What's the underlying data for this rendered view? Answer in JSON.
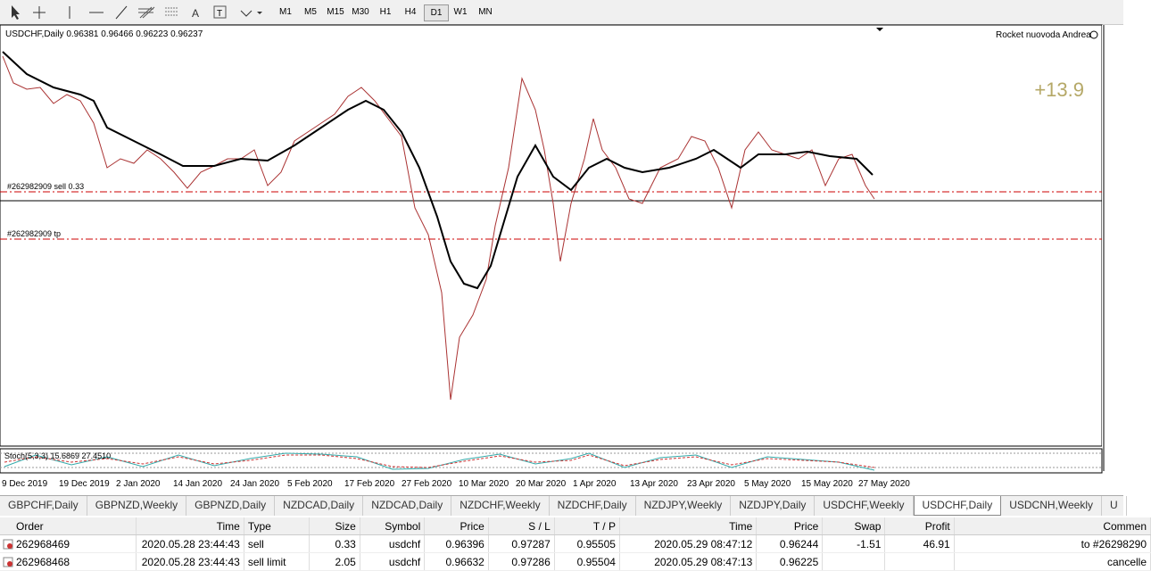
{
  "toolbar": {
    "timeframes": [
      "M1",
      "M5",
      "M15",
      "M30",
      "H1",
      "H4",
      "D1",
      "W1",
      "MN"
    ],
    "active": "D1"
  },
  "chart": {
    "header": "USDCHF,Daily  0.96381 0.96466 0.96223 0.96237",
    "expert": "Rocket nuovoda Andrea",
    "profit_label": "+13.9",
    "order_line": "#262982909 sell 0.33",
    "tp_line": "#262982909 tp",
    "indicator": "Stoch(5,3,3) 15.6869 27.4510",
    "dates": [
      "9 Dec 2019",
      "19 Dec 2019",
      "2 Jan 2020",
      "14 Jan 2020",
      "24 Jan 2020",
      "5 Feb 2020",
      "17 Feb 2020",
      "27 Feb 2020",
      "10 Mar 2020",
      "20 Mar 2020",
      "1 Apr 2020",
      "13 Apr 2020",
      "23 Apr 2020",
      "5 May 2020",
      "15 May 2020",
      "27 May 2020"
    ]
  },
  "tabs": [
    "GBPCHF,Daily",
    "GBPNZD,Weekly",
    "GBPNZD,Daily",
    "NZDCAD,Daily",
    "NZDCAD,Daily",
    "NZDCHF,Weekly",
    "NZDCHF,Daily",
    "NZDJPY,Weekly",
    "NZDJPY,Daily",
    "USDCHF,Weekly",
    "USDCHF,Daily",
    "USDCNH,Weekly",
    "U"
  ],
  "active_tab": "USDCHF,Daily",
  "table": {
    "headers": {
      "order": "Order",
      "time": "Time",
      "type": "Type",
      "size": "Size",
      "symbol": "Symbol",
      "price": "Price",
      "sl": "S / L",
      "tp": "T / P",
      "close_time": "Time",
      "close_price": "Price",
      "swap": "Swap",
      "profit": "Profit",
      "comment": "Commen"
    },
    "rows": [
      {
        "order": "262968469",
        "time": "2020.05.28 23:44:43",
        "type": "sell",
        "size": "0.33",
        "symbol": "usdchf",
        "price": "0.96396",
        "sl": "0.97287",
        "tp": "0.95505",
        "close_time": "2020.05.29 08:47:12",
        "close_price": "0.96244",
        "swap": "-1.51",
        "profit": "46.91",
        "comment": "to #26298290"
      },
      {
        "order": "262968468",
        "time": "2020.05.28 23:44:43",
        "type": "sell limit",
        "size": "2.05",
        "symbol": "usdchf",
        "price": "0.96632",
        "sl": "0.97286",
        "tp": "0.95504",
        "close_time": "2020.05.29 08:47:13",
        "close_price": "0.96225",
        "comment": "cancelle"
      }
    ]
  }
}
